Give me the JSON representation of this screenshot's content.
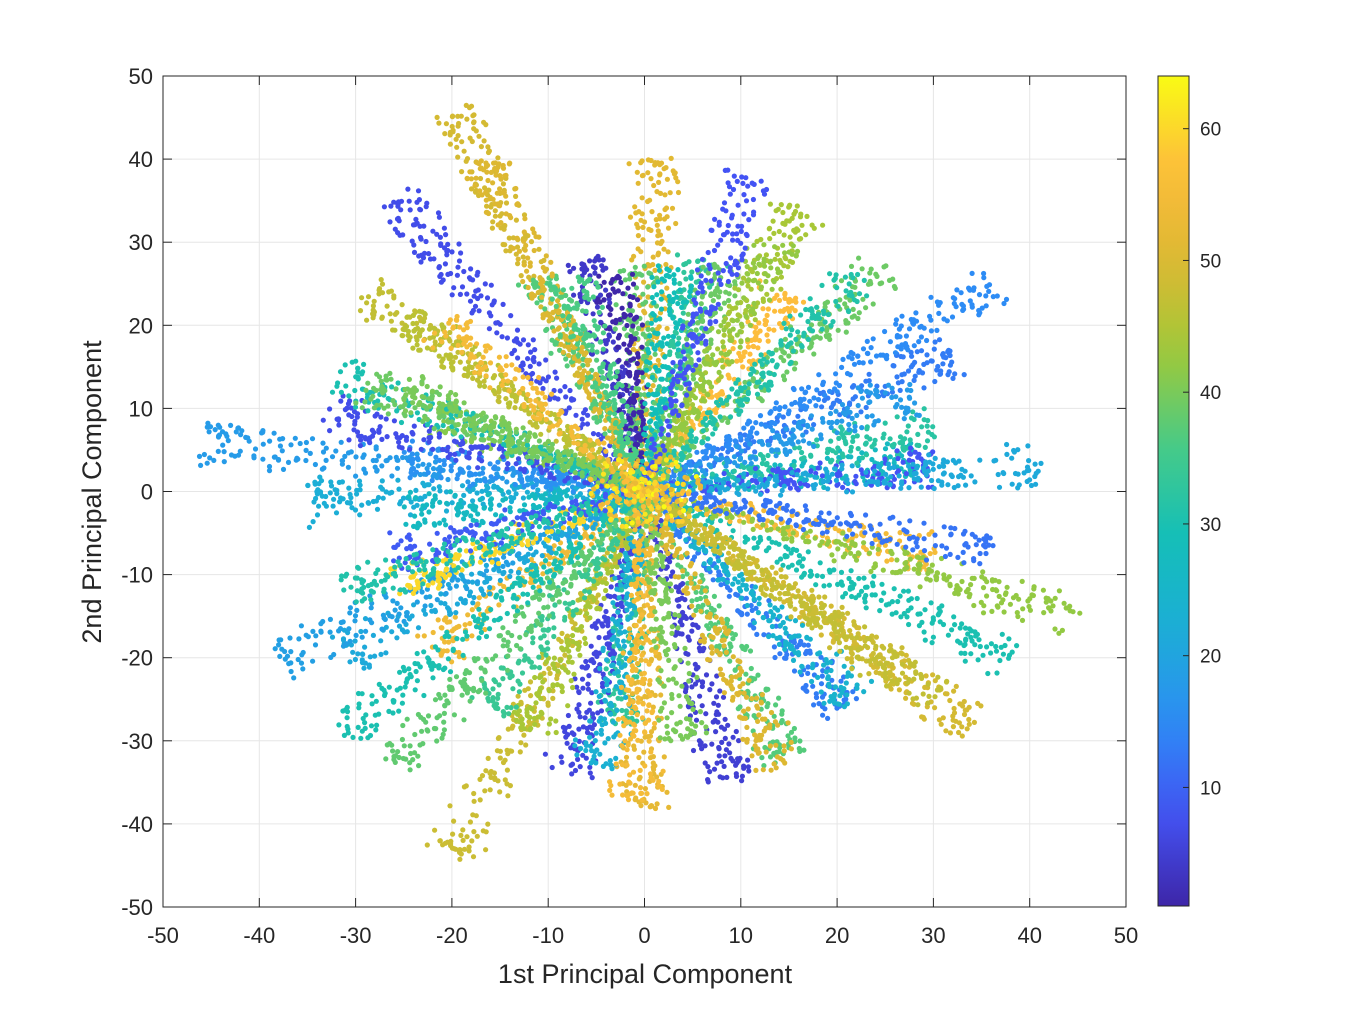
{
  "chart_data": {
    "type": "scatter",
    "title": "",
    "xlabel": "1st Principal Component",
    "ylabel": "2nd Principal Component",
    "xlim": [
      -50,
      50
    ],
    "ylim": [
      -50,
      50
    ],
    "grid": true,
    "x_ticks": [
      -50,
      -40,
      -30,
      -20,
      -10,
      0,
      10,
      20,
      30,
      40,
      50
    ],
    "y_ticks": [
      -50,
      -40,
      -30,
      -20,
      -10,
      0,
      10,
      20,
      30,
      40,
      50
    ],
    "colorbar": {
      "range": [
        1,
        64
      ],
      "ticks": [
        10,
        20,
        30,
        40,
        50,
        60
      ],
      "colormap": "parula",
      "location": "right"
    },
    "colormap_stops": [
      "#3e26a8",
      "#4353f4",
      "#2d8cf5",
      "#1caed6",
      "#13beb8",
      "#48cb86",
      "#9fc938",
      "#ddb832",
      "#fdbd3c",
      "#f9fb14"
    ],
    "rays": [
      {
        "end": [
          -46,
          6
        ],
        "c": 18
      },
      {
        "end": [
          -35,
          -1
        ],
        "c": 22
      },
      {
        "end": [
          -25,
          -3
        ],
        "c": 27
      },
      {
        "end": [
          -38,
          -20
        ],
        "c": 19
      },
      {
        "end": [
          -31,
          -20
        ],
        "c": 21
      },
      {
        "end": [
          -31,
          -29
        ],
        "c": 30
      },
      {
        "end": [
          -26,
          -33
        ],
        "c": 38
      },
      {
        "end": [
          -20,
          -44
        ],
        "c": 48
      },
      {
        "end": [
          -22,
          -19
        ],
        "c": 54
      },
      {
        "end": [
          -26,
          -11
        ],
        "c": 60
      },
      {
        "end": [
          -31,
          -12
        ],
        "c": 31
      },
      {
        "end": [
          -26,
          -8
        ],
        "c": 9
      },
      {
        "end": [
          -16,
          -26
        ],
        "c": 34
      },
      {
        "end": [
          -12,
          -29
        ],
        "c": 44
      },
      {
        "end": [
          -8,
          -34
        ],
        "c": 6
      },
      {
        "end": [
          -5,
          -33
        ],
        "c": 23
      },
      {
        "end": [
          -3,
          -28
        ],
        "c": 33
      },
      {
        "end": [
          0,
          -38
        ],
        "c": 52
      },
      {
        "end": [
          -1,
          -37
        ],
        "c": 55
      },
      {
        "end": [
          4,
          -30
        ],
        "c": 40
      },
      {
        "end": [
          9,
          -35
        ],
        "c": 5
      },
      {
        "end": [
          14,
          -33
        ],
        "c": 50
      },
      {
        "end": [
          15,
          -32
        ],
        "c": 37
      },
      {
        "end": [
          21,
          -26
        ],
        "c": 13
      },
      {
        "end": [
          22,
          -25
        ],
        "c": 24
      },
      {
        "end": [
          27,
          -22
        ],
        "c": 48
      },
      {
        "end": [
          34,
          -28
        ],
        "c": 49
      },
      {
        "end": [
          30,
          -25
        ],
        "c": 47
      },
      {
        "end": [
          38,
          -20
        ],
        "c": 30
      },
      {
        "end": [
          45,
          -15
        ],
        "c": 42
      },
      {
        "end": [
          36,
          -7
        ],
        "c": 12
      },
      {
        "end": [
          30,
          -8
        ],
        "c": 55
      },
      {
        "end": [
          41,
          3
        ],
        "c": 21
      },
      {
        "end": [
          30,
          3
        ],
        "c": 8
      },
      {
        "end": [
          28,
          4
        ],
        "c": 27
      },
      {
        "end": [
          30,
          8
        ],
        "c": 32
      },
      {
        "end": [
          36,
          25
        ],
        "c": 15
      },
      {
        "end": [
          32,
          17
        ],
        "c": 13
      },
      {
        "end": [
          28,
          12
        ],
        "c": 18
      },
      {
        "end": [
          25,
          27
        ],
        "c": 39
      },
      {
        "end": [
          22,
          26
        ],
        "c": 31
      },
      {
        "end": [
          16,
          34
        ],
        "c": 44
      },
      {
        "end": [
          14,
          30
        ],
        "c": 42
      },
      {
        "end": [
          11,
          38
        ],
        "c": 8
      },
      {
        "end": [
          15,
          24
        ],
        "c": 57
      },
      {
        "end": [
          8,
          27
        ],
        "c": 39
      },
      {
        "end": [
          6,
          28
        ],
        "c": 33
      },
      {
        "end": [
          3,
          27
        ],
        "c": 29
      },
      {
        "end": [
          1,
          40
        ],
        "c": 51
      },
      {
        "end": [
          -1,
          27
        ],
        "c": 38
      },
      {
        "end": [
          -3,
          26
        ],
        "c": 1
      },
      {
        "end": [
          -6,
          28
        ],
        "c": 4
      },
      {
        "end": [
          -8,
          26
        ],
        "c": 36
      },
      {
        "end": [
          -11,
          26
        ],
        "c": 37
      },
      {
        "end": [
          -20,
          46
        ],
        "c": 49
      },
      {
        "end": [
          -17,
          40
        ],
        "c": 50
      },
      {
        "end": [
          -26,
          35
        ],
        "c": 7
      },
      {
        "end": [
          -21,
          20
        ],
        "c": 55
      },
      {
        "end": [
          -29,
          24
        ],
        "c": 47
      },
      {
        "end": [
          -25,
          21
        ],
        "c": 46
      },
      {
        "end": [
          -29,
          13
        ],
        "c": 39
      },
      {
        "end": [
          -32,
          14
        ],
        "c": 30
      },
      {
        "end": [
          -25,
          12
        ],
        "c": 40
      },
      {
        "end": [
          -33,
          9
        ],
        "c": 7
      },
      {
        "end": [
          -25,
          4
        ],
        "c": 16
      },
      {
        "end": [
          -22,
          9
        ],
        "c": 41
      }
    ]
  }
}
